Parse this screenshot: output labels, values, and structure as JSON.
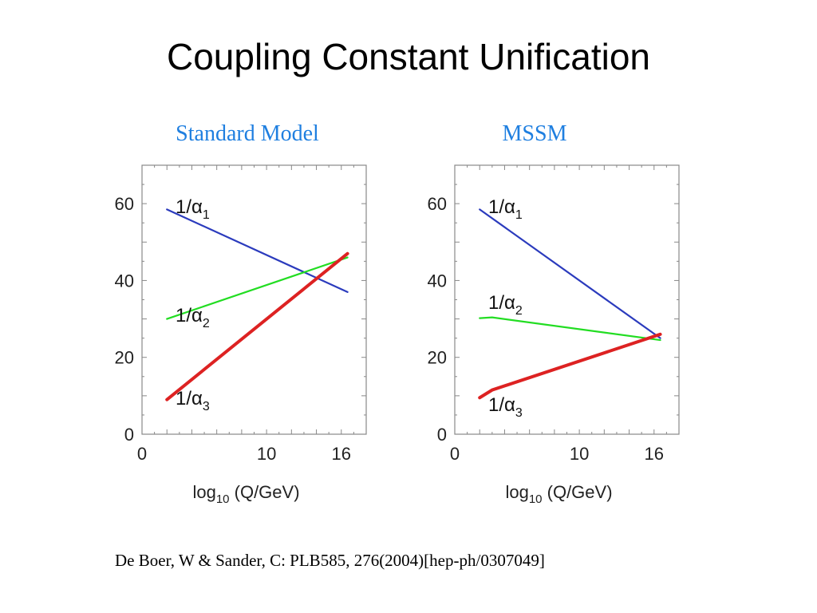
{
  "slide": {
    "title": "Coupling Constant Unification",
    "citation": "De Boer, W & Sander, C: PLB585, 276(2004)[hep-ph/0307049]"
  },
  "colors": {
    "alpha1": "#2b3bbd",
    "alpha2": "#22dd22",
    "alpha3": "#dd2222",
    "subtitle": "#1f7fe0"
  },
  "chart_data": [
    {
      "type": "line",
      "title": "Standard Model",
      "xlabel_main": "log",
      "xlabel_sub": "10",
      "xlabel_rest": "(Q/GeV)",
      "xlim": [
        0,
        18
      ],
      "ylim": [
        0,
        70
      ],
      "x_ticks": [
        "0",
        "10",
        "16"
      ],
      "y_ticks": [
        "0",
        "20",
        "40",
        "60"
      ],
      "grid": false,
      "series": [
        {
          "label_main": "1/α",
          "label_sub": "1",
          "color": "#2b3bbd",
          "x": [
            2,
            16.5
          ],
          "y": [
            58.5,
            37
          ]
        },
        {
          "label_main": "1/α",
          "label_sub": "2",
          "color": "#22dd22",
          "x": [
            2,
            16.5
          ],
          "y": [
            30,
            46
          ]
        },
        {
          "label_main": "1/α",
          "label_sub": "3",
          "color": "#dd2222",
          "x": [
            2,
            16.5
          ],
          "y": [
            9,
            47
          ]
        }
      ]
    },
    {
      "type": "line",
      "title": "MSSM",
      "xlabel_main": "log",
      "xlabel_sub": "10",
      "xlabel_rest": "(Q/GeV)",
      "xlim": [
        0,
        18
      ],
      "ylim": [
        0,
        70
      ],
      "x_ticks": [
        "0",
        "10",
        "16"
      ],
      "y_ticks": [
        "0",
        "20",
        "40",
        "60"
      ],
      "grid": false,
      "series": [
        {
          "label_main": "1/α",
          "label_sub": "1",
          "color": "#2b3bbd",
          "x": [
            2,
            16.5
          ],
          "y": [
            58.5,
            25
          ]
        },
        {
          "label_main": "1/α",
          "label_sub": "2",
          "color": "#22dd22",
          "x": [
            2,
            3,
            16.5
          ],
          "y": [
            30.2,
            30.4,
            24.5
          ]
        },
        {
          "label_main": "1/α",
          "label_sub": "3",
          "color": "#dd2222",
          "x": [
            2,
            3,
            16.5
          ],
          "y": [
            9.5,
            11.5,
            26
          ]
        }
      ]
    }
  ]
}
